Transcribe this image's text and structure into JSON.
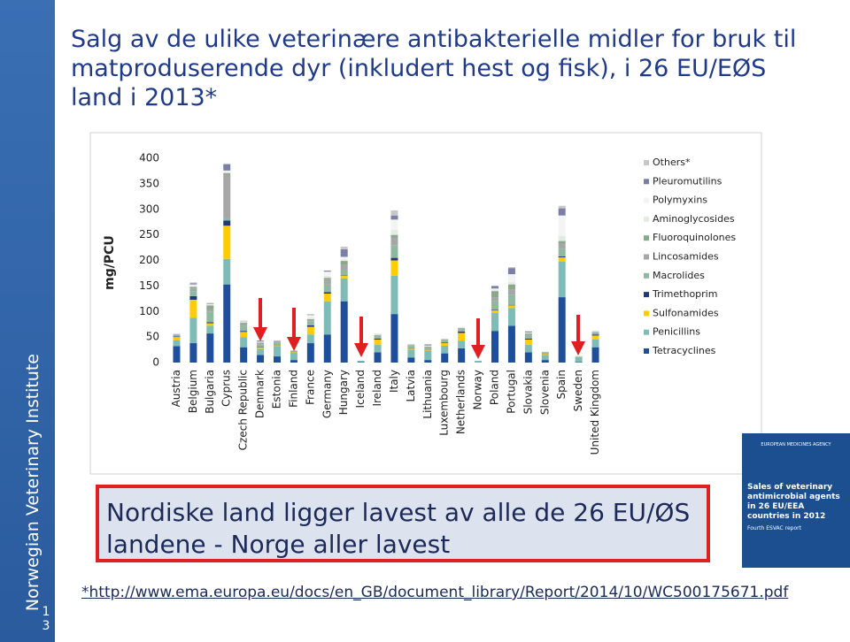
{
  "sidebar": {
    "organization": "Norwegian Veterinary Institute",
    "slide_number": "13"
  },
  "title": "Salg av de ulike veterinære antibakterielle midler for bruk til matproduserende dyr (inkludert hest og fisk), i 26 EU/EØS land i 2013*",
  "chart_data": {
    "type": "bar",
    "stacked": true,
    "ylabel": "mg/PCU",
    "ylim": [
      0,
      400
    ],
    "yticks": [
      0,
      50,
      100,
      150,
      200,
      250,
      300,
      350,
      400
    ],
    "legend": "right",
    "categories": [
      "Austria",
      "Belgium",
      "Bulgaria",
      "Cyprus",
      "Czech Republic",
      "Denmark",
      "Estonia",
      "Finland",
      "France",
      "Germany",
      "Hungary",
      "Iceland",
      "Ireland",
      "Italy",
      "Latvia",
      "Lithuania",
      "Luxembourg",
      "Netherlands",
      "Norway",
      "Poland",
      "Portugal",
      "Slovakia",
      "Slovenia",
      "Spain",
      "Sweden",
      "United Kingdom"
    ],
    "series": [
      {
        "name": "Tetracyclines",
        "color": "#1f4e9c",
        "values": [
          32,
          38,
          57,
          153,
          30,
          15,
          12,
          5,
          38,
          55,
          120,
          1,
          20,
          95,
          10,
          5,
          18,
          28,
          0.5,
          62,
          72,
          20,
          5,
          128,
          1,
          30
        ]
      },
      {
        "name": "Penicillins",
        "color": "#7fbcb8",
        "values": [
          12,
          50,
          15,
          50,
          20,
          12,
          20,
          15,
          17,
          65,
          45,
          2.5,
          15,
          75,
          15,
          18,
          15,
          15,
          3,
          35,
          35,
          15,
          10,
          70,
          10,
          15
        ]
      },
      {
        "name": "Sulfonamides",
        "color": "#ffcc00",
        "values": [
          6,
          35,
          5,
          65,
          10,
          3,
          2,
          2,
          15,
          15,
          5,
          0,
          10,
          30,
          2,
          1,
          5,
          15,
          0,
          5,
          5,
          10,
          2,
          8,
          1,
          8
        ]
      },
      {
        "name": "Trimethoprim",
        "color": "#1f3a7a",
        "values": [
          1,
          7,
          2,
          10,
          2,
          1,
          0.5,
          0.5,
          3,
          3,
          1,
          0,
          2,
          5,
          0.5,
          0.5,
          1,
          3,
          0,
          1,
          1,
          2,
          0.5,
          2,
          0,
          2
        ]
      },
      {
        "name": "Macrolides",
        "color": "#8fb8a0",
        "values": [
          3,
          10,
          20,
          5,
          10,
          5,
          5,
          1,
          8,
          15,
          10,
          0,
          4,
          25,
          4,
          4,
          3,
          4,
          0,
          18,
          20,
          5,
          2,
          15,
          0.5,
          3
        ]
      },
      {
        "name": "Lincosamides",
        "color": "#a6a6a6",
        "values": [
          1,
          5,
          5,
          85,
          3,
          3,
          2,
          0,
          2,
          10,
          10,
          0,
          2,
          15,
          2,
          2,
          2,
          2,
          0,
          7,
          10,
          2,
          1,
          10,
          0,
          1
        ]
      },
      {
        "name": "Fluoroquinolones",
        "color": "#8aa88a",
        "values": [
          1,
          3,
          8,
          3,
          3,
          0,
          1,
          0,
          2,
          3,
          8,
          0,
          1,
          5,
          1,
          1,
          1,
          1,
          0,
          12,
          10,
          3,
          0.5,
          5,
          0,
          1
        ]
      },
      {
        "name": "Aminoglycosides",
        "color": "#e3ebe3",
        "values": [
          0,
          3,
          2,
          3,
          1,
          1,
          1,
          0,
          3,
          4,
          3,
          0,
          1,
          10,
          1,
          1,
          1,
          1,
          0,
          3,
          5,
          1,
          0.5,
          10,
          0,
          1
        ]
      },
      {
        "name": "Polymyxins",
        "color": "#f4f4f4",
        "values": [
          0,
          2,
          1,
          2,
          1,
          1,
          1,
          0,
          5,
          8,
          5,
          0,
          0,
          20,
          0,
          1,
          0,
          1,
          0,
          2,
          15,
          1,
          0,
          40,
          0,
          0
        ]
      },
      {
        "name": "Pleuromutilins",
        "color": "#7b7fa8",
        "values": [
          0,
          2,
          1,
          12,
          0,
          2,
          0,
          0,
          1,
          2,
          15,
          0,
          0,
          8,
          0,
          2,
          0,
          0,
          0,
          5,
          12,
          2,
          0,
          14,
          0,
          0
        ]
      },
      {
        "name": "Others*",
        "color": "#c8c8c8",
        "values": [
          0,
          2,
          1,
          2,
          2,
          0,
          0,
          0,
          1,
          0,
          5,
          0,
          1,
          10,
          1,
          0,
          1,
          0,
          0,
          0,
          2,
          0,
          0,
          5,
          0,
          1
        ]
      }
    ]
  },
  "callout": {
    "text": "Nordiske land ligger lavest av alle de 26 EU/ØS landene - Norge aller lavest"
  },
  "report_cover": {
    "agency": "EUROPEAN MEDICINES AGENCY",
    "title": "Sales of veterinary antimicrobial agents in 26 EU/EEA countries in 2012",
    "subtitle": "Fourth ESVAC report"
  },
  "footnote": "*http://www.ema.europa.eu/docs/en_GB/document_library/Report/2014/10/WC500175671.pdf"
}
